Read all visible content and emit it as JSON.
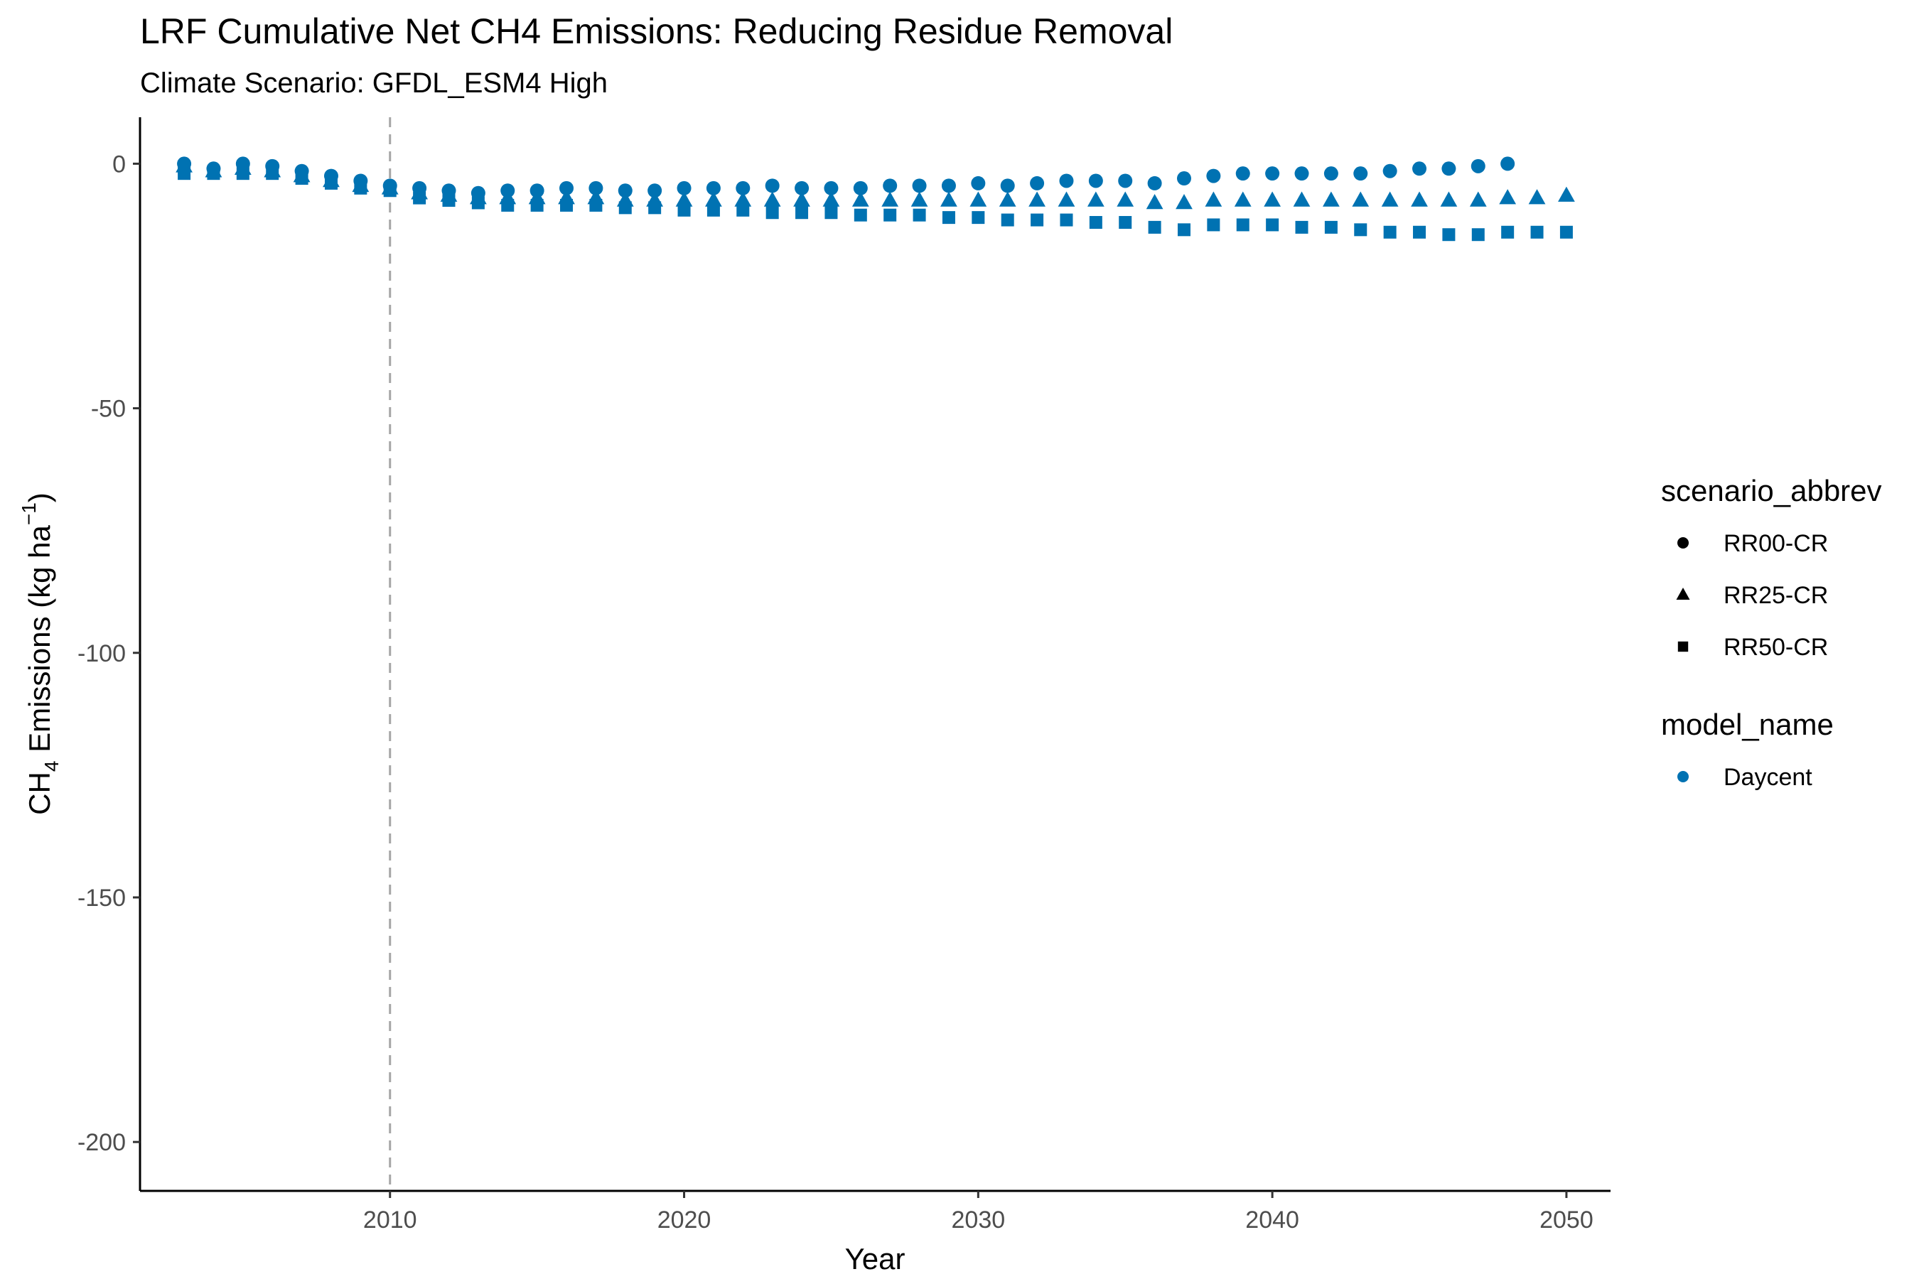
{
  "chart_data": {
    "type": "scatter",
    "title": "LRF  Cumulative Net CH4 Emissions: Reducing Residue Removal",
    "subtitle": "Climate Scenario: GFDL_ESM4 High",
    "xlabel": "Year",
    "ylabel": {
      "prefix": "CH",
      "subscript": "4",
      "middle": " Emissions (kg ha",
      "superscript": "−1",
      "suffix": ")"
    },
    "xlim": [
      2001.5,
      2051.5
    ],
    "ylim": [
      -210,
      9.5
    ],
    "x_ticks": [
      2010,
      2020,
      2030,
      2040,
      2050
    ],
    "y_ticks": [
      0,
      -50,
      -100,
      -150,
      -200
    ],
    "grid": false,
    "vline": {
      "x": 2010,
      "style": "dashed",
      "color": "#a6a6a6"
    },
    "point_color": "#0072B2",
    "legend": {
      "position": "right",
      "groups": [
        {
          "title": "scenario_abbrev",
          "entries": [
            {
              "label": "RR00-CR",
              "shape": "circle",
              "color": "#000000"
            },
            {
              "label": "RR25-CR",
              "shape": "triangle",
              "color": "#000000"
            },
            {
              "label": "RR50-CR",
              "shape": "square",
              "color": "#000000"
            }
          ]
        },
        {
          "title": "model_name",
          "entries": [
            {
              "label": "Daycent",
              "shape": "circle",
              "color": "#0072B2"
            }
          ]
        }
      ]
    },
    "series": [
      {
        "name": "RR00-CR",
        "model": "Daycent",
        "shape": "circle",
        "x": [
          2003,
          2004,
          2005,
          2006,
          2007,
          2008,
          2009,
          2010,
          2011,
          2012,
          2013,
          2014,
          2015,
          2016,
          2017,
          2018,
          2019,
          2020,
          2021,
          2022,
          2023,
          2024,
          2025,
          2026,
          2027,
          2028,
          2029,
          2030,
          2031,
          2032,
          2033,
          2034,
          2035,
          2036,
          2037,
          2038,
          2039,
          2040,
          2041,
          2042,
          2043,
          2044,
          2045,
          2046,
          2047,
          2048
        ],
        "y": [
          0,
          -1,
          0,
          -0.5,
          -1.5,
          -2.5,
          -3.5,
          -4.5,
          -5,
          -5.5,
          -6,
          -5.5,
          -5.5,
          -5,
          -5,
          -5.5,
          -5.5,
          -5,
          -5,
          -5,
          -4.5,
          -5,
          -5,
          -5,
          -4.5,
          -4.5,
          -4.5,
          -4,
          -4.5,
          -4,
          -3.5,
          -3.5,
          -3.5,
          -4,
          -3,
          -2.5,
          -2,
          -2,
          -2,
          -2,
          -2,
          -1.5,
          -1,
          -1,
          -0.5,
          0
        ]
      },
      {
        "name": "RR25-CR",
        "model": "Daycent",
        "shape": "triangle",
        "x": [
          2003,
          2004,
          2005,
          2006,
          2007,
          2008,
          2009,
          2010,
          2011,
          2012,
          2013,
          2014,
          2015,
          2016,
          2017,
          2018,
          2019,
          2020,
          2021,
          2022,
          2023,
          2024,
          2025,
          2026,
          2027,
          2028,
          2029,
          2030,
          2031,
          2032,
          2033,
          2034,
          2035,
          2036,
          2037,
          2038,
          2039,
          2040,
          2041,
          2042,
          2043,
          2044,
          2045,
          2046,
          2047,
          2048,
          2049,
          2050
        ],
        "y": [
          -0.5,
          -1.5,
          -1,
          -1.5,
          -2.5,
          -3.5,
          -4.5,
          -5,
          -6,
          -6.5,
          -7,
          -7,
          -7,
          -7,
          -7,
          -7.5,
          -7.5,
          -7.5,
          -7.5,
          -7.5,
          -7.5,
          -7.5,
          -7.5,
          -7.5,
          -7.5,
          -7.5,
          -7.5,
          -7.5,
          -7.5,
          -7.5,
          -7.5,
          -7.5,
          -7.5,
          -8,
          -8,
          -7.5,
          -7.5,
          -7.5,
          -7.5,
          -7.5,
          -7.5,
          -7.5,
          -7.5,
          -7.5,
          -7.5,
          -7,
          -7,
          -6.5
        ]
      },
      {
        "name": "RR50-CR",
        "model": "Daycent",
        "shape": "square",
        "x": [
          2003,
          2004,
          2005,
          2006,
          2007,
          2008,
          2009,
          2010,
          2011,
          2012,
          2013,
          2014,
          2015,
          2016,
          2017,
          2018,
          2019,
          2020,
          2021,
          2022,
          2023,
          2024,
          2025,
          2026,
          2027,
          2028,
          2029,
          2030,
          2031,
          2032,
          2033,
          2034,
          2035,
          2036,
          2037,
          2038,
          2039,
          2040,
          2041,
          2042,
          2043,
          2044,
          2045,
          2046,
          2047,
          2048,
          2049,
          2050
        ],
        "y": [
          -2,
          -2,
          -2,
          -2,
          -3,
          -4,
          -5,
          -5.5,
          -7,
          -7.5,
          -8,
          -8.5,
          -8.5,
          -8.5,
          -8.5,
          -9,
          -9,
          -9.5,
          -9.5,
          -9.5,
          -10,
          -10,
          -10,
          -10.5,
          -10.5,
          -10.5,
          -11,
          -11,
          -11.5,
          -11.5,
          -11.5,
          -12,
          -12,
          -13,
          -13.5,
          -12.5,
          -12.5,
          -12.5,
          -13,
          -13,
          -13.5,
          -14,
          -14,
          -14.5,
          -14.5,
          -14,
          -14,
          -14
        ]
      }
    ]
  }
}
